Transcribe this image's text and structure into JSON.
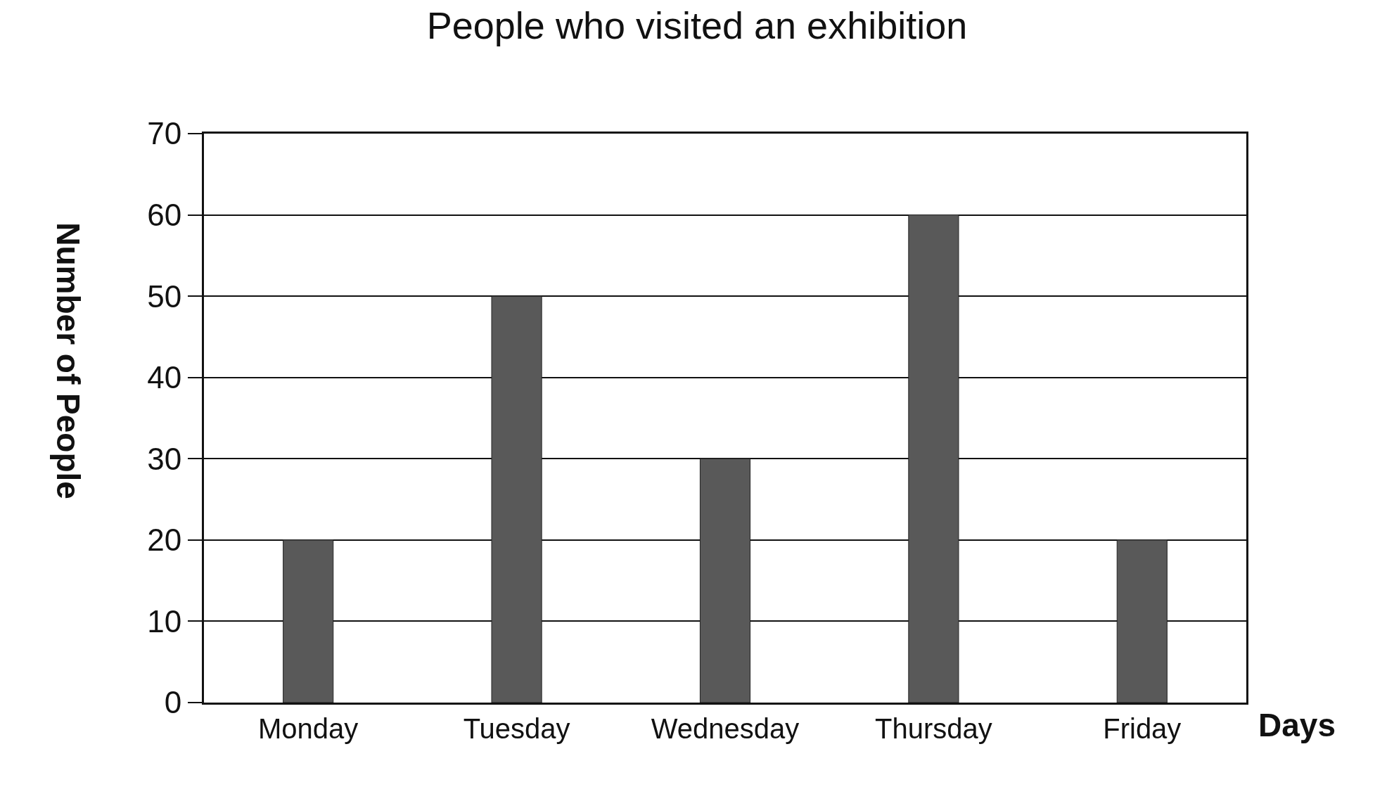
{
  "chart_data": {
    "type": "bar",
    "title": "People who visited an exhibition",
    "xlabel": "Days",
    "ylabel": "Number of People",
    "categories": [
      "Monday",
      "Tuesday",
      "Wednesday",
      "Thursday",
      "Friday"
    ],
    "values": [
      20,
      50,
      30,
      60,
      20
    ],
    "color": "#595959",
    "ylim": [
      0,
      70
    ],
    "yticks": [
      0,
      10,
      20,
      30,
      40,
      50,
      60,
      70
    ],
    "grid": "y"
  }
}
